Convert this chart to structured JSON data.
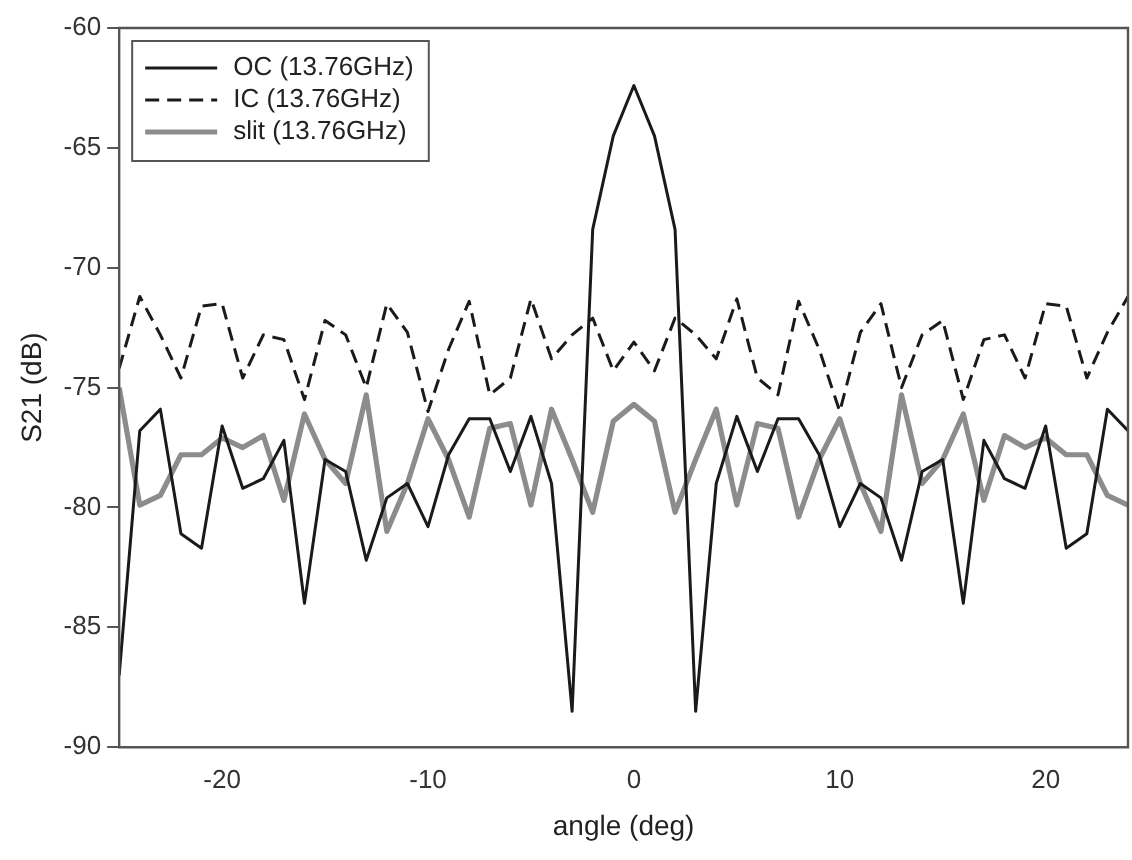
{
  "chart_data": {
    "type": "line",
    "xlabel": "angle (deg)",
    "ylabel": "S21 (dB)",
    "x": [
      -25,
      -24,
      -23,
      -22,
      -21,
      -20,
      -19,
      -18,
      -17,
      -16,
      -15,
      -14,
      -13,
      -12,
      -11,
      -10,
      -9,
      -8,
      -7,
      -6,
      -5,
      -4,
      -3,
      -2,
      -1,
      0,
      1,
      2,
      3,
      4,
      5,
      6,
      7,
      8,
      9,
      10,
      11,
      12,
      13,
      14,
      15,
      16,
      17,
      18,
      19,
      20,
      21,
      22,
      23,
      24
    ],
    "xlim": [
      -25,
      24
    ],
    "xticks": [
      -20,
      -10,
      0,
      10,
      20
    ],
    "ylim": [
      -90,
      -60
    ],
    "yticks": [
      -90,
      -85,
      -80,
      -75,
      -70,
      -65,
      -60
    ],
    "grid": false,
    "legend": "top left",
    "marker": "none",
    "series": [
      {
        "name": "OC (13.76GHz)",
        "color": "#1a1a1a",
        "line_style": "solid",
        "values": [
          -87,
          -76.8,
          -75.9,
          -81.1,
          -81.7,
          -76.6,
          -79.2,
          -78.8,
          -77.2,
          -84,
          -78,
          -78.5,
          -82.2,
          -79.6,
          -79,
          -80.8,
          -77.8,
          -76.3,
          -76.3,
          -78.5,
          -76.2,
          -79,
          -88.5,
          -68.4,
          -64.5,
          -62.4,
          -64.5,
          -68.4,
          -88.5,
          -79,
          -76.2,
          -78.5,
          -76.3,
          -76.3,
          -77.8,
          -80.8,
          -79,
          -79.6,
          -82.2,
          -78.5,
          -78,
          -84,
          -77.2,
          -78.8,
          -79.2,
          -76.6,
          -81.7,
          -81.1,
          -75.9,
          -76.8
        ]
      },
      {
        "name": "IC (13.76GHz)",
        "color": "#1a1a1a",
        "line_style": "dashed",
        "values": [
          -74.2,
          -71.2,
          -72.8,
          -74.6,
          -71.6,
          -71.5,
          -74.6,
          -72.8,
          -73,
          -75.5,
          -72.2,
          -72.8,
          -75,
          -71.5,
          -72.7,
          -76,
          -73.4,
          -71.4,
          -75.3,
          -74.6,
          -71.3,
          -73.8,
          -72.8,
          -72.1,
          -74.3,
          -73.1,
          -74.3,
          -72.1,
          -72.8,
          -73.8,
          -71.3,
          -74.6,
          -75.3,
          -71.4,
          -73.4,
          -76,
          -72.7,
          -71.5,
          -75,
          -72.8,
          -72.2,
          -75.5,
          -73,
          -72.8,
          -74.6,
          -71.5,
          -71.6,
          -74.6,
          -72.7,
          -71.2
        ]
      },
      {
        "name": "slit (13.76GHz)",
        "color": "#8c8c8c",
        "line_style": "solid",
        "values": [
          -75,
          -79.9,
          -79.5,
          -77.8,
          -77.8,
          -77.1,
          -77.5,
          -77,
          -79.7,
          -76.1,
          -78,
          -79,
          -75.3,
          -81,
          -79,
          -76.3,
          -78,
          -80.4,
          -76.7,
          -76.5,
          -79.9,
          -75.9,
          -78,
          -80.2,
          -76.4,
          -75.7,
          -76.4,
          -80.2,
          -78,
          -75.9,
          -79.9,
          -76.5,
          -76.7,
          -80.4,
          -78,
          -76.3,
          -79,
          -81,
          -75.3,
          -79,
          -78,
          -76.1,
          -79.7,
          -77,
          -77.5,
          -77.1,
          -77.8,
          -77.8,
          -79.5,
          -79.9
        ]
      }
    ]
  }
}
